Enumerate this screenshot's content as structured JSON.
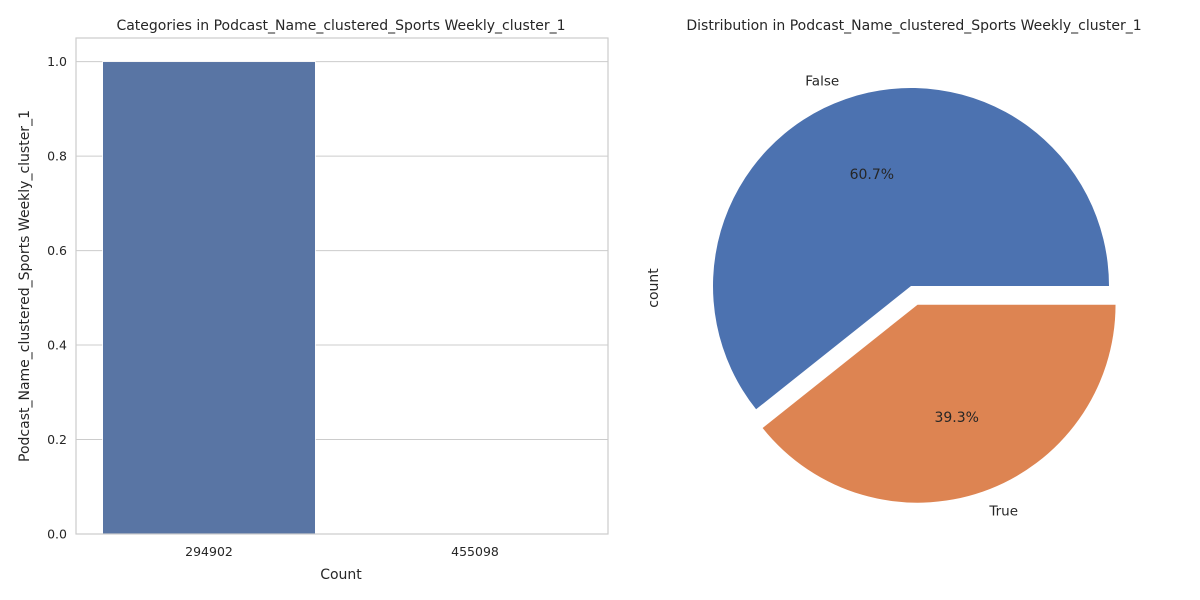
{
  "chart_data": [
    {
      "type": "bar",
      "title": "Categories in Podcast_Name_clustered_Sports Weekly_cluster_1",
      "xlabel": "Count",
      "ylabel": "Podcast_Name_clustered_Sports Weekly_cluster_1",
      "categories": [
        "294902",
        "455098"
      ],
      "values": [
        1.0,
        0.0
      ],
      "ylim": [
        0,
        1.05
      ],
      "yticks": [
        "0.0",
        "0.2",
        "0.4",
        "0.6",
        "0.8",
        "1.0"
      ],
      "ytick_values": [
        0,
        0.2,
        0.4,
        0.6,
        0.8,
        1.0
      ],
      "grid": true,
      "bar_color": "#5975a4"
    },
    {
      "type": "pie",
      "title": "Distribution in Podcast_Name_clustered_Sports Weekly_cluster_1",
      "ylabel": "count",
      "labels": [
        "False",
        "True"
      ],
      "values": [
        60.7,
        39.3
      ],
      "percent_labels": [
        "60.7%",
        "39.3%"
      ],
      "explode": [
        0,
        0.1
      ],
      "colors": [
        "#4c72b0",
        "#dd8452"
      ]
    }
  ]
}
